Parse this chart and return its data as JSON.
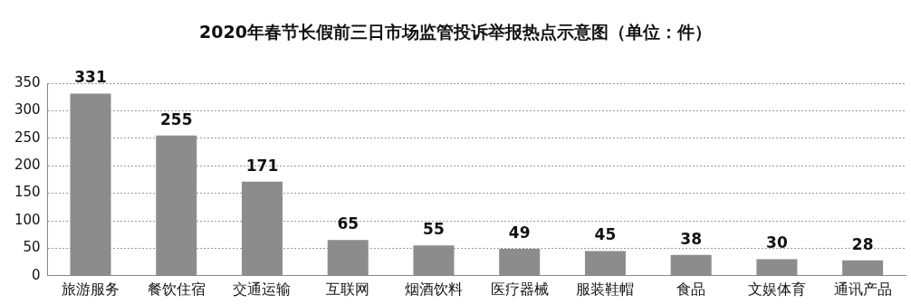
{
  "chart_data": {
    "type": "bar",
    "title": "2020年春节长假前三日市场监管投诉举报热点示意图（单位：件）",
    "categories": [
      "旅游服务",
      "餐饮住宿",
      "交通运输",
      "互联网",
      "烟酒饮料",
      "医疗器械",
      "服装鞋帽",
      "食品",
      "文娱体育",
      "通讯产品"
    ],
    "values": [
      331,
      255,
      171,
      65,
      55,
      49,
      45,
      38,
      30,
      28
    ],
    "color": "#8c8c8c",
    "ylim": [
      0,
      350
    ],
    "yticks": [
      0,
      50,
      100,
      150,
      200,
      250,
      300,
      350
    ],
    "grid": "y",
    "data_labels": true,
    "legend": false
  }
}
